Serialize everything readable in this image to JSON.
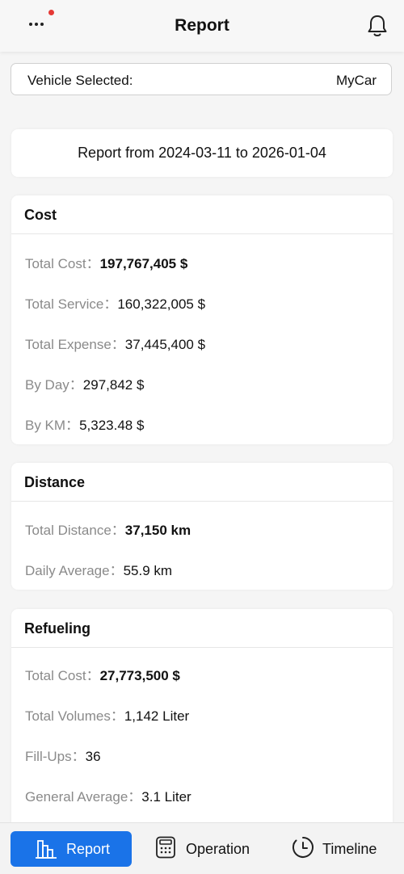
{
  "header": {
    "title": "Report"
  },
  "vehicle": {
    "label": "Vehicle Selected:",
    "value": "MyCar"
  },
  "report_range": "Report from 2024-03-11 to 2026-01-04",
  "cost": {
    "title": "Cost",
    "total_cost_label": "Total Cost：",
    "total_cost": "197,767,405 $",
    "total_service_label": "Total Service：",
    "total_service": "160,322,005 $",
    "total_expense_label": "Total Expense：",
    "total_expense": "37,445,400 $",
    "by_day_label": "By Day：",
    "by_day": "297,842 $",
    "by_km_label": "By KM：",
    "by_km": "5,323.48 $"
  },
  "distance": {
    "title": "Distance",
    "total_distance_label": "Total Distance：",
    "total_distance": "37,150 km",
    "daily_average_label": "Daily Average：",
    "daily_average": "55.9 km"
  },
  "refueling": {
    "title": "Refueling",
    "total_cost_label": "Total Cost：",
    "total_cost": "27,773,500 $",
    "total_volumes_label": "Total Volumes：",
    "total_volumes": "1,142 Liter",
    "fill_ups_label": "Fill-Ups：",
    "fill_ups": "36",
    "general_average_label": "General Average：",
    "general_average": "3.1 Liter"
  },
  "tabs": [
    {
      "label": "Report",
      "icon": "bar-chart-icon",
      "active": true
    },
    {
      "label": "Operation",
      "icon": "calculator-icon",
      "active": false
    },
    {
      "label": "Timeline",
      "icon": "clock-icon",
      "active": false
    }
  ],
  "colors": {
    "accent": "#1a73e8",
    "notification": "#e53935"
  }
}
